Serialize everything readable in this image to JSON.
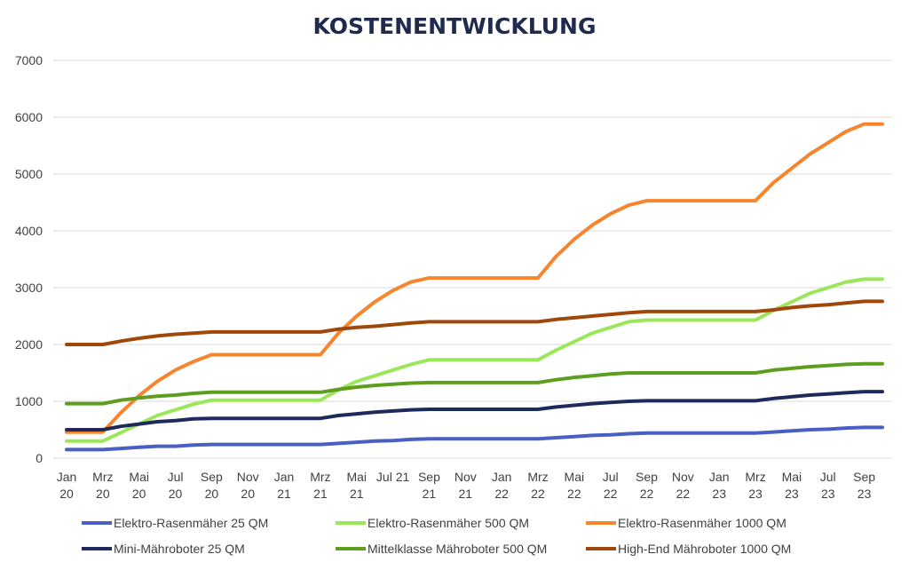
{
  "chart_data": {
    "type": "line",
    "title": "KOSTENENTWICKLUNG",
    "xlabel": "",
    "ylabel": "",
    "ylim": [
      0,
      7000
    ],
    "yticks": [
      0,
      1000,
      2000,
      3000,
      4000,
      5000,
      6000,
      7000
    ],
    "grid": true,
    "legend_position": "bottom",
    "categories": [
      "Jan 20",
      "Feb 20",
      "Mrz 20",
      "Apr 20",
      "Mai 20",
      "Jun 20",
      "Jul 20",
      "Aug 20",
      "Sep 20",
      "Okt 20",
      "Nov 20",
      "Dez 20",
      "Jan 21",
      "Feb 21",
      "Mrz 21",
      "Apr 21",
      "Mai 21",
      "Jun 21",
      "Jul 21",
      "Aug 21",
      "Sep 21",
      "Okt 21",
      "Nov 21",
      "Dez 21",
      "Jan 22",
      "Feb 22",
      "Mrz 22",
      "Apr 22",
      "Mai 22",
      "Jun 22",
      "Jul 22",
      "Aug 22",
      "Sep 22",
      "Okt 22",
      "Nov 22",
      "Dez 22",
      "Jan 23",
      "Feb 23",
      "Mrz 23",
      "Apr 23",
      "Mai 23",
      "Jun 23",
      "Jul 23",
      "Aug 23",
      "Sep 23",
      "Okt 23"
    ],
    "tick_labels": [
      {
        "index": 0,
        "line1": "Jan",
        "line2": "20"
      },
      {
        "index": 2,
        "line1": "Mrz",
        "line2": "20"
      },
      {
        "index": 4,
        "line1": "Mai",
        "line2": "20"
      },
      {
        "index": 6,
        "line1": "Jul",
        "line2": "20"
      },
      {
        "index": 8,
        "line1": "Sep",
        "line2": "20"
      },
      {
        "index": 10,
        "line1": "Nov",
        "line2": "20"
      },
      {
        "index": 12,
        "line1": "Jan",
        "line2": "21"
      },
      {
        "index": 14,
        "line1": "Mrz",
        "line2": "21"
      },
      {
        "index": 16,
        "line1": "Mai",
        "line2": "21"
      },
      {
        "index": 18,
        "line1": "Jul 21",
        "line2": ""
      },
      {
        "index": 20,
        "line1": "Sep",
        "line2": "21"
      },
      {
        "index": 22,
        "line1": "Nov",
        "line2": "21"
      },
      {
        "index": 24,
        "line1": "Jan",
        "line2": "22"
      },
      {
        "index": 26,
        "line1": "Mrz",
        "line2": "22"
      },
      {
        "index": 28,
        "line1": "Mai",
        "line2": "22"
      },
      {
        "index": 30,
        "line1": "Jul",
        "line2": "22"
      },
      {
        "index": 32,
        "line1": "Sep",
        "line2": "22"
      },
      {
        "index": 34,
        "line1": "Nov",
        "line2": "22"
      },
      {
        "index": 36,
        "line1": "Jan",
        "line2": "23"
      },
      {
        "index": 38,
        "line1": "Mrz",
        "line2": "23"
      },
      {
        "index": 40,
        "line1": "Mai",
        "line2": "23"
      },
      {
        "index": 42,
        "line1": "Jul",
        "line2": "23"
      },
      {
        "index": 44,
        "line1": "Sep",
        "line2": "23"
      }
    ],
    "series": [
      {
        "name": "Elektro-Rasenmäher 25 QM",
        "color": "#4a5fc4",
        "values": [
          150,
          150,
          150,
          170,
          190,
          210,
          210,
          230,
          240,
          240,
          240,
          240,
          240,
          240,
          240,
          260,
          280,
          300,
          310,
          330,
          340,
          340,
          340,
          340,
          340,
          340,
          340,
          360,
          380,
          400,
          410,
          430,
          440,
          440,
          440,
          440,
          440,
          440,
          440,
          460,
          480,
          500,
          510,
          530,
          540,
          540
        ]
      },
      {
        "name": "Elektro-Rasenmäher 500 QM",
        "color": "#9ae85a",
        "values": [
          300,
          300,
          300,
          450,
          600,
          750,
          850,
          950,
          1020,
          1020,
          1020,
          1020,
          1020,
          1020,
          1020,
          1200,
          1350,
          1450,
          1550,
          1650,
          1730,
          1730,
          1730,
          1730,
          1730,
          1730,
          1730,
          1900,
          2050,
          2200,
          2300,
          2400,
          2430,
          2430,
          2430,
          2430,
          2430,
          2430,
          2430,
          2600,
          2750,
          2900,
          3000,
          3100,
          3150,
          3150
        ]
      },
      {
        "name": "Elektro-Rasenmäher 1000 QM",
        "color": "#f7852e",
        "values": [
          460,
          460,
          460,
          800,
          1100,
          1350,
          1550,
          1700,
          1820,
          1820,
          1820,
          1820,
          1820,
          1820,
          1820,
          2200,
          2500,
          2750,
          2950,
          3100,
          3170,
          3170,
          3170,
          3170,
          3170,
          3170,
          3170,
          3550,
          3850,
          4100,
          4300,
          4450,
          4530,
          4530,
          4530,
          4530,
          4530,
          4530,
          4530,
          4850,
          5100,
          5350,
          5550,
          5750,
          5880,
          5880
        ]
      },
      {
        "name": "Mini-Mähroboter 25 QM",
        "color": "#1f2a5c",
        "values": [
          500,
          500,
          500,
          560,
          600,
          640,
          660,
          690,
          700,
          700,
          700,
          700,
          700,
          700,
          700,
          750,
          780,
          810,
          830,
          850,
          860,
          860,
          860,
          860,
          860,
          860,
          860,
          900,
          930,
          960,
          980,
          1000,
          1010,
          1010,
          1010,
          1010,
          1010,
          1010,
          1010,
          1050,
          1080,
          1110,
          1130,
          1150,
          1170,
          1170
        ]
      },
      {
        "name": "Mittelklasse Mähroboter 500 QM",
        "color": "#5e9e1e",
        "values": [
          960,
          960,
          960,
          1020,
          1060,
          1090,
          1110,
          1140,
          1160,
          1160,
          1160,
          1160,
          1160,
          1160,
          1160,
          1210,
          1250,
          1280,
          1300,
          1320,
          1330,
          1330,
          1330,
          1330,
          1330,
          1330,
          1330,
          1380,
          1420,
          1450,
          1480,
          1500,
          1500,
          1500,
          1500,
          1500,
          1500,
          1500,
          1500,
          1550,
          1580,
          1610,
          1630,
          1650,
          1660,
          1660
        ]
      },
      {
        "name": "High-End Mähroboter 1000 QM",
        "color": "#a0480a",
        "values": [
          2000,
          2000,
          2000,
          2060,
          2110,
          2150,
          2180,
          2200,
          2220,
          2220,
          2220,
          2220,
          2220,
          2220,
          2220,
          2270,
          2300,
          2320,
          2350,
          2380,
          2400,
          2400,
          2400,
          2400,
          2400,
          2400,
          2400,
          2440,
          2470,
          2500,
          2530,
          2560,
          2580,
          2580,
          2580,
          2580,
          2580,
          2580,
          2580,
          2610,
          2650,
          2680,
          2700,
          2730,
          2760,
          2760
        ]
      }
    ]
  }
}
